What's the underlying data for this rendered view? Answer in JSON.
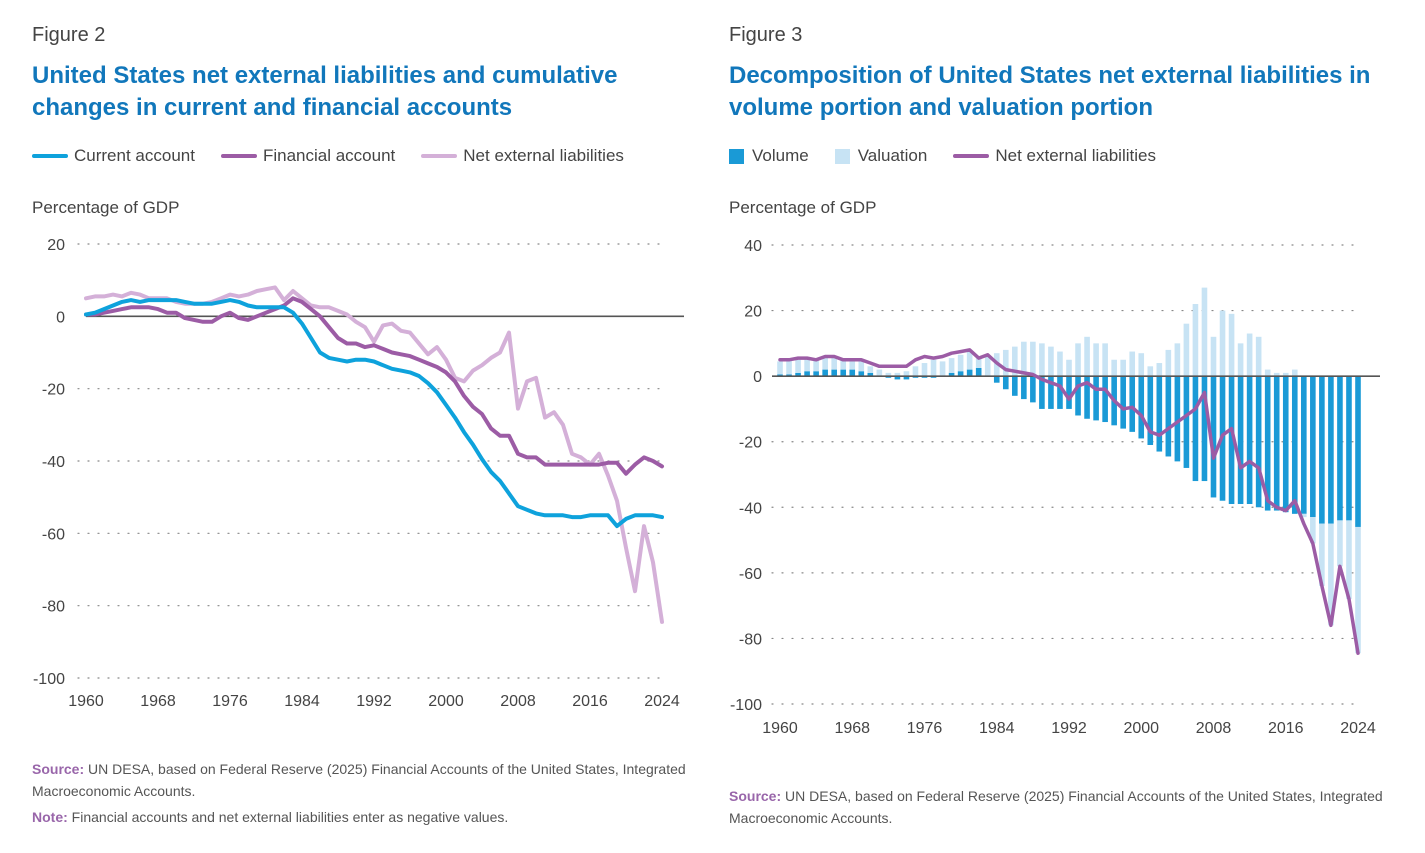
{
  "figures": [
    {
      "label": "Figure 2",
      "title": "United States net external liabilities and cumulative changes in current and financial accounts",
      "legend": [
        "Current account",
        "Financial account",
        "Net external liabilities"
      ],
      "ylabel": "Percentage of GDP",
      "source_label": "Source:",
      "source_text": "UN DESA, based on Federal Reserve (2025) Financial Accounts of the United States, Integrated Macroeconomic Accounts.",
      "note_label": "Note:",
      "note_text": "Financial accounts and net external liabilities enter as negative values."
    },
    {
      "label": "Figure 3",
      "title": "Decomposition of United States net external liabilities in volume portion and valuation portion",
      "legend": [
        "Volume",
        "Valuation",
        "Net external liabilities"
      ],
      "ylabel": "Percentage of GDP",
      "source_label": "Source:",
      "source_text": "UN DESA, based on Federal Reserve (2025) Financial Accounts of the United States, Integrated Macroeconomic Accounts."
    }
  ],
  "colors": {
    "current_account": "#0ea2dc",
    "financial_account": "#9c5ca5",
    "net_liabilities_light": "#d4b0d8",
    "net_liabilities": "#9c5ca5",
    "volume": "#1a9ad6",
    "valuation": "#c7e3f4",
    "title": "#1177bb"
  },
  "chart_data": [
    {
      "type": "line",
      "title": "United States net external liabilities and cumulative changes in current and financial accounts",
      "xlabel": "",
      "ylabel": "Percentage of GDP",
      "xlim": [
        1960,
        2024
      ],
      "ylim": [
        -100,
        20
      ],
      "yticks": [
        20,
        0,
        -20,
        -40,
        -60,
        -80,
        -100
      ],
      "xticks": [
        1960,
        1968,
        1976,
        1984,
        1992,
        2000,
        2008,
        2016,
        2024
      ],
      "grid": "horizontal dotted",
      "x": [
        1960,
        1961,
        1962,
        1963,
        1964,
        1965,
        1966,
        1967,
        1968,
        1969,
        1970,
        1971,
        1972,
        1973,
        1974,
        1975,
        1976,
        1977,
        1978,
        1979,
        1980,
        1981,
        1982,
        1983,
        1984,
        1985,
        1986,
        1987,
        1988,
        1989,
        1990,
        1991,
        1992,
        1993,
        1994,
        1995,
        1996,
        1997,
        1998,
        1999,
        2000,
        2001,
        2002,
        2003,
        2004,
        2005,
        2006,
        2007,
        2008,
        2009,
        2010,
        2011,
        2012,
        2013,
        2014,
        2015,
        2016,
        2017,
        2018,
        2019,
        2020,
        2021,
        2022,
        2023,
        2024
      ],
      "series": [
        {
          "name": "Current account",
          "values": [
            0.5,
            1,
            2,
            3,
            4,
            4.5,
            4,
            4.5,
            4.5,
            4.5,
            4.5,
            4,
            3.5,
            3.5,
            3.5,
            4,
            4.5,
            4,
            3,
            2.5,
            2.5,
            2.5,
            2.5,
            1,
            -2,
            -6,
            -10,
            -11.5,
            -12,
            -12.5,
            -12,
            -12,
            -12.5,
            -13.5,
            -14.5,
            -15,
            -15.5,
            -16.5,
            -18.5,
            -21,
            -24.5,
            -28,
            -32,
            -35.5,
            -39.5,
            -43,
            -45.5,
            -49,
            -52.5,
            -53.5,
            -54.5,
            -55,
            -55,
            -55,
            -55.5,
            -55.5,
            -55,
            -55,
            -55,
            -58,
            -56,
            -55,
            -55,
            -55,
            -55.5
          ]
        },
        {
          "name": "Financial account",
          "values": [
            0.5,
            0.5,
            1,
            1.5,
            2,
            2.5,
            2.5,
            2.5,
            2,
            1,
            1,
            -0.5,
            -1,
            -1.5,
            -1.5,
            0,
            1,
            -0.5,
            -1,
            0,
            1,
            2,
            3,
            5,
            4,
            2,
            0,
            -3,
            -6,
            -7.5,
            -7.5,
            -8.5,
            -8,
            -9,
            -10,
            -10.5,
            -11,
            -12,
            -13,
            -14,
            -15.5,
            -18,
            -22,
            -25,
            -27,
            -31,
            -33,
            -33,
            -38,
            -39,
            -39,
            -41,
            -41,
            -41,
            -41,
            -41,
            -41,
            -41,
            -40.5,
            -40.5,
            -43.5,
            -41,
            -39,
            -40,
            -41.5
          ]
        },
        {
          "name": "Net external liabilities",
          "values": [
            5,
            5.5,
            5.5,
            6,
            5.5,
            6.5,
            6,
            5,
            5,
            5,
            4,
            3.5,
            3.5,
            3.5,
            4,
            5,
            6,
            5.5,
            6,
            7,
            7.5,
            8,
            4.5,
            7,
            5,
            3,
            2.5,
            2.5,
            1.5,
            0.5,
            -1.5,
            -3,
            -7,
            -2.5,
            -2,
            -4,
            -4.5,
            -7.5,
            -10.5,
            -8.5,
            -12,
            -17,
            -18,
            -15,
            -13.5,
            -11.5,
            -10,
            -4.5,
            -25.5,
            -18,
            -17,
            -28,
            -26.5,
            -30,
            -38,
            -39,
            -41,
            -38,
            -44,
            -51,
            -64,
            -76,
            -58,
            -68,
            -84.5
          ]
        }
      ]
    },
    {
      "type": "bar",
      "title": "Decomposition of United States net external liabilities in volume portion and valuation portion",
      "xlabel": "",
      "ylabel": "Percentage of GDP",
      "xlim": [
        1960,
        2024
      ],
      "ylim": [
        -100,
        40
      ],
      "yticks": [
        40,
        20,
        0,
        -20,
        -40,
        -60,
        -80,
        -100
      ],
      "xticks": [
        1960,
        1968,
        1976,
        1984,
        1992,
        2000,
        2008,
        2016,
        2024
      ],
      "grid": "horizontal dotted",
      "x": [
        1960,
        1961,
        1962,
        1963,
        1964,
        1965,
        1966,
        1967,
        1968,
        1969,
        1970,
        1971,
        1972,
        1973,
        1974,
        1975,
        1976,
        1977,
        1978,
        1979,
        1980,
        1981,
        1982,
        1983,
        1984,
        1985,
        1986,
        1987,
        1988,
        1989,
        1990,
        1991,
        1992,
        1993,
        1994,
        1995,
        1996,
        1997,
        1998,
        1999,
        2000,
        2001,
        2002,
        2003,
        2004,
        2005,
        2006,
        2007,
        2008,
        2009,
        2010,
        2011,
        2012,
        2013,
        2014,
        2015,
        2016,
        2017,
        2018,
        2019,
        2020,
        2021,
        2022,
        2023,
        2024
      ],
      "series": [
        {
          "name": "Volume",
          "kind": "bar",
          "values": [
            0.5,
            0.5,
            1,
            1.5,
            1.5,
            2,
            2,
            2,
            2,
            1.5,
            1,
            0,
            -0.5,
            -1,
            -1,
            -0.5,
            -0.5,
            -0.5,
            0,
            1,
            1.5,
            2,
            2.5,
            0,
            -2,
            -4,
            -6,
            -7,
            -8,
            -10,
            -10,
            -10,
            -10,
            -12,
            -13,
            -13.5,
            -14,
            -15,
            -16,
            -17,
            -19,
            -21,
            -23,
            -24.5,
            -26,
            -28,
            -32,
            -32,
            -37,
            -38,
            -39,
            -39,
            -39,
            -40,
            -41,
            -41,
            -41.5,
            -42,
            -42,
            -43,
            -45,
            -45,
            -44,
            -44,
            -46
          ]
        },
        {
          "name": "Valuation",
          "kind": "bar",
          "values": [
            4,
            4.5,
            4,
            4,
            3.5,
            4,
            4,
            3,
            3,
            3,
            2,
            2,
            1,
            1,
            1.5,
            3,
            4,
            5,
            4.5,
            4.5,
            5,
            6,
            3,
            6,
            7,
            8,
            9,
            10.5,
            10.5,
            10,
            9,
            7.5,
            5,
            10,
            12,
            10,
            10,
            5,
            5,
            7.5,
            7,
            3,
            4,
            8,
            10,
            16,
            22,
            27,
            12,
            20,
            19,
            10,
            13,
            12,
            2,
            1,
            1,
            2,
            -1,
            -8,
            -19,
            -31,
            -14,
            -24,
            -38.5
          ]
        },
        {
          "name": "Net external liabilities",
          "kind": "line",
          "values": [
            5,
            5,
            5.5,
            5.5,
            5,
            6,
            6,
            5,
            5,
            5,
            4,
            3,
            3,
            3,
            3,
            5,
            6,
            5.5,
            6,
            7,
            7.5,
            8,
            5.5,
            6.5,
            4,
            2,
            1.5,
            1,
            0.5,
            -1,
            -2,
            -3,
            -7,
            -3,
            -2,
            -4,
            -4,
            -7.5,
            -10,
            -9.5,
            -12,
            -17,
            -18,
            -16,
            -14,
            -12,
            -10,
            -5,
            -25,
            -18,
            -16,
            -28,
            -26,
            -28,
            -38,
            -40,
            -41,
            -38,
            -45,
            -51,
            -64,
            -76,
            -58,
            -68,
            -84.5
          ]
        }
      ]
    }
  ]
}
